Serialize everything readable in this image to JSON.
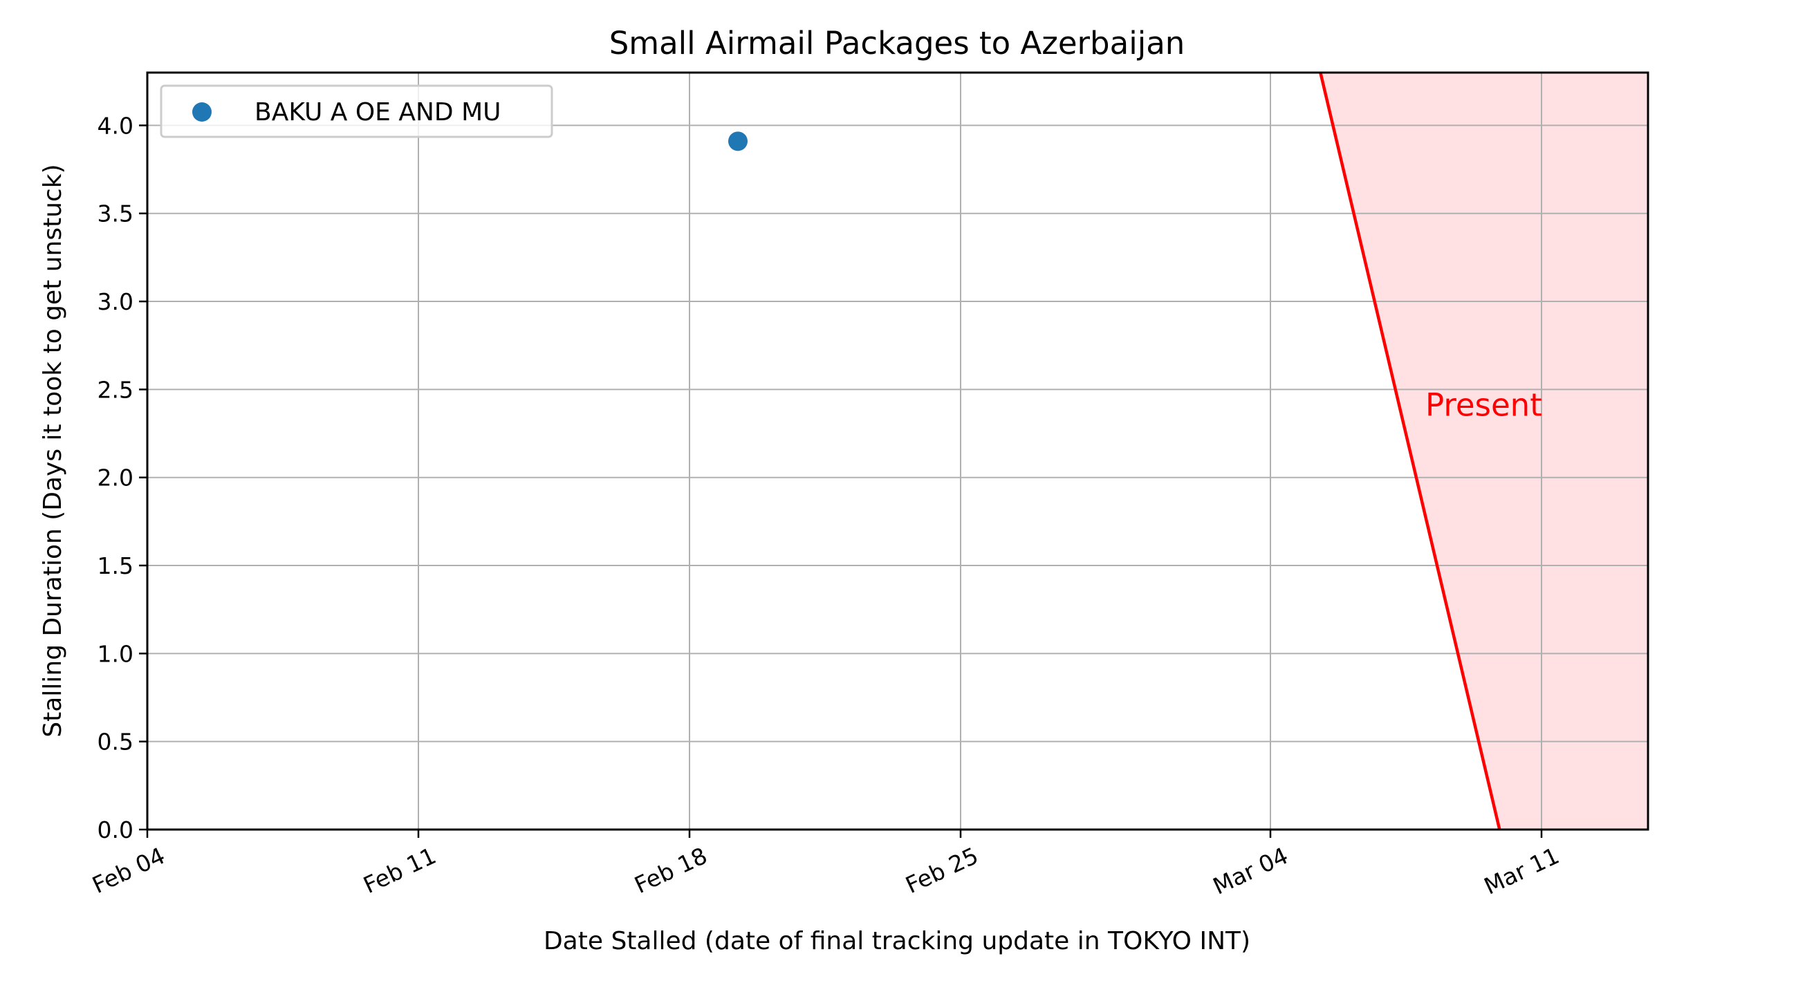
{
  "chart_data": {
    "type": "scatter",
    "title": "Small Airmail Packages to Azerbaijan",
    "xlabel": "Date Stalled (date of final tracking update in TOKYO INT)",
    "ylabel": "Stalling Duration (Days it took to get unstuck)",
    "x_type": "date",
    "xlim": [
      "2024-02-04",
      "2024-03-13T18:00"
    ],
    "ylim": [
      0,
      4.3
    ],
    "x_ticks": [
      {
        "value": "2024-02-04",
        "label": "Feb 04"
      },
      {
        "value": "2024-02-11",
        "label": "Feb 11"
      },
      {
        "value": "2024-02-18",
        "label": "Feb 18"
      },
      {
        "value": "2024-02-25",
        "label": "Feb 25"
      },
      {
        "value": "2024-03-04",
        "label": "Mar 04"
      },
      {
        "value": "2024-03-11",
        "label": "Mar 11"
      }
    ],
    "y_ticks": [
      0.0,
      0.5,
      1.0,
      1.5,
      2.0,
      2.5,
      3.0,
      3.5,
      4.0
    ],
    "y_tick_labels": [
      "0.0",
      "0.5",
      "1.0",
      "1.5",
      "2.0",
      "2.5",
      "3.0",
      "3.5",
      "4.0"
    ],
    "grid": true,
    "legend_position": "upper-left",
    "series": [
      {
        "name": "BAKU A OE AND MU",
        "color": "#1f77b4",
        "points": [
          {
            "x": "2024-02-19T06:00",
            "y": 3.91
          }
        ]
      }
    ],
    "present_annotation": {
      "text": "Present",
      "color": "#ff0000",
      "shade_color": "#ffe0e3",
      "line_start": {
        "x": "2024-03-05T07:00",
        "y": 4.3
      },
      "line_end": {
        "x": "2024-03-09T22:00",
        "y": 0
      },
      "label_position": {
        "x": "2024-03-08T00:00",
        "y": 2.35
      }
    }
  }
}
